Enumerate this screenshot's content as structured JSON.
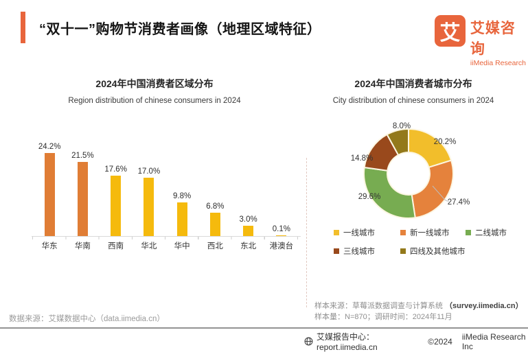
{
  "header": {
    "title": "“双十一”购物节消费者画像（地理区域特征）",
    "logo": {
      "mark": "艾",
      "name_cn": "艾媒咨询",
      "name_en": "iiMedia Research"
    }
  },
  "chart_data": [
    {
      "type": "bar",
      "title": "2024年中国消费者区域分布",
      "subtitle": "Region distribution of chinese consumers in 2024",
      "categories": [
        "华东",
        "华南",
        "西南",
        "华北",
        "华中",
        "西北",
        "东北",
        "港澳台"
      ],
      "values": [
        24.2,
        21.5,
        17.6,
        17.0,
        9.8,
        6.8,
        3.0,
        0.1
      ],
      "data_labels": [
        "24.2%",
        "21.5%",
        "17.6%",
        "17.0%",
        "9.8%",
        "6.8%",
        "3.0%",
        "0.1%"
      ],
      "unit": "%",
      "ylim": [
        0,
        28
      ],
      "grid": false,
      "bar_colors": [
        "#E07D35",
        "#E07D35",
        "#F5BA0D",
        "#F5BA0D",
        "#F5BA0D",
        "#F5BA0D",
        "#F5BA0D",
        "#F5BA0D"
      ]
    },
    {
      "type": "pie",
      "donut": true,
      "title": "2024年中国消费者城市分布",
      "subtitle": "City distribution of chinese consumers in 2024",
      "categories": [
        "一线城市",
        "新一线城市",
        "二线城市",
        "三线城市",
        "四线及其他城市"
      ],
      "values": [
        20.2,
        27.4,
        29.6,
        14.8,
        8.0
      ],
      "data_labels": [
        "20.2%",
        "27.4%",
        "29.6%",
        "14.8%",
        "8.0%"
      ],
      "colors": [
        "#F2BE2B",
        "#E5823C",
        "#77AC51",
        "#99491C",
        "#93791B"
      ],
      "legend_position": "bottom",
      "start_angle_deg": 0,
      "direction": "clockwise"
    }
  ],
  "footer": {
    "data_source": "数据来源：艾媒数据中心（data.iimedia.cn）",
    "sample_source_prefix": "样本来源：草莓派数据调查与计算系统 ",
    "sample_source_bold": "（survey.iimedia.cn）",
    "sample_info": "样本量：N=870；调研时间：2024年11月",
    "report_center": "艾媒报告中心：report.iimedia.cn",
    "copyright": "©2024",
    "company": "iiMedia Research Inc"
  },
  "colors": {
    "accent": "#E8653C",
    "axis": "#d9d9d9"
  }
}
